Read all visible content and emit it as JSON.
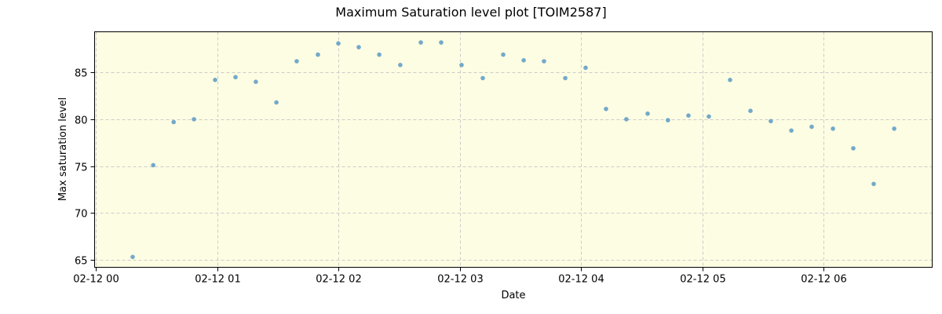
{
  "chart_data": {
    "type": "scatter",
    "title": "Maximum Saturation level plot [TOIM2587]",
    "xlabel": "Date",
    "ylabel": "Max saturation level",
    "x_tick_labels": [
      "02-12 00",
      "02-12 01",
      "02-12 02",
      "02-12 03",
      "02-12 04",
      "02-12 05",
      "02-12 06"
    ],
    "y_tick_labels": [
      "65",
      "70",
      "75",
      "80",
      "85"
    ],
    "y_ticks": [
      65,
      70,
      75,
      80,
      85
    ],
    "ylim": [
      64.2,
      89.2
    ],
    "xlim_hours": [
      -0.01,
      6.9
    ],
    "grid": true,
    "background_color": "#fdfde3",
    "marker_color": "#5b9ac6",
    "legend": null,
    "points": [
      {
        "t": "02-12 00:18",
        "h": 0.304,
        "y": 65.3
      },
      {
        "t": "02-12 00:28",
        "h": 0.474,
        "y": 75.1
      },
      {
        "t": "02-12 00:38",
        "h": 0.642,
        "y": 79.7
      },
      {
        "t": "02-12 00:48",
        "h": 0.81,
        "y": 80.0
      },
      {
        "t": "02-12 00:59",
        "h": 0.984,
        "y": 84.2
      },
      {
        "t": "02-12 01:09",
        "h": 1.152,
        "y": 84.5
      },
      {
        "t": "02-12 01:19",
        "h": 1.32,
        "y": 84.0
      },
      {
        "t": "02-12 01:29",
        "h": 1.489,
        "y": 81.8
      },
      {
        "t": "02-12 01:39",
        "h": 1.657,
        "y": 86.2
      },
      {
        "t": "02-12 01:50",
        "h": 1.832,
        "y": 86.9
      },
      {
        "t": "02-12 02:00",
        "h": 2.0,
        "y": 88.1
      },
      {
        "t": "02-12 02:10",
        "h": 2.168,
        "y": 87.7
      },
      {
        "t": "02-12 02:20",
        "h": 2.337,
        "y": 86.9
      },
      {
        "t": "02-12 02:31",
        "h": 2.511,
        "y": 85.8
      },
      {
        "t": "02-12 02:41",
        "h": 2.68,
        "y": 88.2
      },
      {
        "t": "02-12 02:51",
        "h": 2.848,
        "y": 88.2
      },
      {
        "t": "02-12 03:01",
        "h": 3.016,
        "y": 85.8
      },
      {
        "t": "02-12 03:11",
        "h": 3.191,
        "y": 84.4
      },
      {
        "t": "02-12 03:22",
        "h": 3.359,
        "y": 86.9
      },
      {
        "t": "02-12 03:32",
        "h": 3.528,
        "y": 86.3
      },
      {
        "t": "02-12 03:42",
        "h": 3.696,
        "y": 86.2
      },
      {
        "t": "02-12 03:52",
        "h": 3.871,
        "y": 84.4
      },
      {
        "t": "02-12 04:02",
        "h": 4.039,
        "y": 85.5
      },
      {
        "t": "02-12 04:12",
        "h": 4.207,
        "y": 81.1
      },
      {
        "t": "02-12 04:22",
        "h": 4.375,
        "y": 80.0
      },
      {
        "t": "02-12 04:33",
        "h": 4.55,
        "y": 80.6
      },
      {
        "t": "02-12 04:43",
        "h": 4.718,
        "y": 79.9
      },
      {
        "t": "02-12 04:53",
        "h": 4.887,
        "y": 80.4
      },
      {
        "t": "02-12 05:03",
        "h": 5.055,
        "y": 80.3
      },
      {
        "t": "02-12 05:14",
        "h": 5.23,
        "y": 84.2
      },
      {
        "t": "02-12 05:24",
        "h": 5.398,
        "y": 80.9
      },
      {
        "t": "02-12 05:34",
        "h": 5.566,
        "y": 79.8
      },
      {
        "t": "02-12 05:44",
        "h": 5.735,
        "y": 78.8
      },
      {
        "t": "02-12 05:54",
        "h": 5.903,
        "y": 79.2
      },
      {
        "t": "02-12 06:05",
        "h": 6.078,
        "y": 79.0
      },
      {
        "t": "02-12 06:15",
        "h": 6.246,
        "y": 76.9
      },
      {
        "t": "02-12 06:25",
        "h": 6.414,
        "y": 73.1
      },
      {
        "t": "02-12 06:35",
        "h": 6.583,
        "y": 79.0
      }
    ]
  }
}
